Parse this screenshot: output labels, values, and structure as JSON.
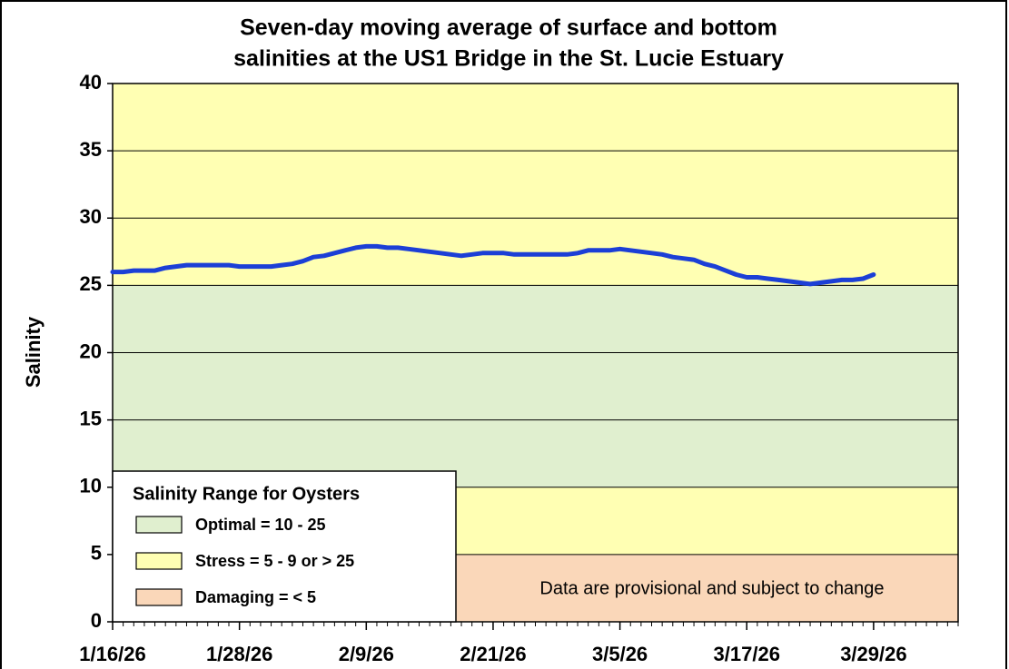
{
  "chart_data": {
    "type": "line",
    "title": [
      "Seven-day moving average of surface and bottom",
      "salinities at  the US1 Bridge in the St. Lucie Estuary"
    ],
    "y_label": "Salinity",
    "ylim": [
      0,
      40
    ],
    "yticks": [
      0,
      5,
      10,
      15,
      20,
      25,
      30,
      35,
      40
    ],
    "xlim": [
      "1/16/26",
      "4/6/26"
    ],
    "xticks": [
      "1/16/26",
      "1/28/26",
      "2/9/26",
      "2/21/26",
      "3/5/26",
      "3/17/26",
      "3/29/26"
    ],
    "grid": true,
    "legend_title": "Salinity Range for Oysters",
    "ranges": [
      {
        "name": "Optimal = 10 - 25",
        "color": "#e0efcf",
        "bands": [
          [
            10,
            25
          ]
        ]
      },
      {
        "name": "Stress = 5 - 9 or > 25",
        "color": "#ffffb3",
        "bands": [
          [
            5,
            10
          ],
          [
            25,
            40
          ]
        ]
      },
      {
        "name": "Damaging = < 5",
        "color": "#fad7b9",
        "bands": [
          [
            0,
            5
          ]
        ]
      }
    ],
    "annotation": "Data are provisional and subject to change",
    "x": [
      "1/16/26",
      "1/17/26",
      "1/18/26",
      "1/19/26",
      "1/20/26",
      "1/21/26",
      "1/22/26",
      "1/23/26",
      "1/24/26",
      "1/25/26",
      "1/26/26",
      "1/27/26",
      "1/28/26",
      "1/29/26",
      "1/30/26",
      "1/31/26",
      "2/1/26",
      "2/2/26",
      "2/3/26",
      "2/4/26",
      "2/5/26",
      "2/6/26",
      "2/7/26",
      "2/8/26",
      "2/9/26",
      "2/10/26",
      "2/11/26",
      "2/12/26",
      "2/13/26",
      "2/14/26",
      "2/15/26",
      "2/16/26",
      "2/17/26",
      "2/18/26",
      "2/19/26",
      "2/20/26",
      "2/21/26",
      "2/22/26",
      "2/23/26",
      "2/24/26",
      "2/25/26",
      "2/26/26",
      "2/27/26",
      "2/28/26",
      "3/1/26",
      "3/2/26",
      "3/3/26",
      "3/4/26",
      "3/5/26",
      "3/6/26",
      "3/7/26",
      "3/8/26",
      "3/9/26",
      "3/10/26",
      "3/11/26",
      "3/12/26",
      "3/13/26",
      "3/14/26",
      "3/15/26",
      "3/16/26",
      "3/17/26",
      "3/18/26",
      "3/19/26",
      "3/20/26",
      "3/21/26",
      "3/22/26",
      "3/23/26",
      "3/24/26",
      "3/25/26",
      "3/26/26",
      "3/27/26",
      "3/28/26",
      "3/29/26"
    ],
    "series": [
      {
        "color": "#1c3fd6",
        "values": [
          26.0,
          26.0,
          26.1,
          26.1,
          26.1,
          26.3,
          26.4,
          26.5,
          26.5,
          26.5,
          26.5,
          26.5,
          26.4,
          26.4,
          26.4,
          26.4,
          26.5,
          26.6,
          26.8,
          27.1,
          27.2,
          27.4,
          27.6,
          27.8,
          27.9,
          27.9,
          27.8,
          27.8,
          27.7,
          27.6,
          27.5,
          27.4,
          27.3,
          27.2,
          27.3,
          27.4,
          27.4,
          27.4,
          27.3,
          27.3,
          27.3,
          27.3,
          27.3,
          27.3,
          27.4,
          27.6,
          27.6,
          27.6,
          27.7,
          27.6,
          27.5,
          27.4,
          27.3,
          27.1,
          27.0,
          26.9,
          26.6,
          26.4,
          26.1,
          25.8,
          25.6,
          25.6,
          25.5,
          25.4,
          25.3,
          25.2,
          25.1,
          25.2,
          25.3,
          25.4,
          25.4,
          25.5,
          25.8
        ]
      }
    ]
  }
}
